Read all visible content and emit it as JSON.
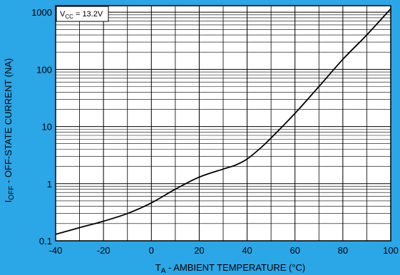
{
  "chart_data": {
    "type": "line",
    "xlabel_main": "T",
    "xlabel_sub": "A",
    "xlabel_rest": " - AMBIENT TEMPERATURE (°C)",
    "ylabel_main": "I",
    "ylabel_sub": "OFF",
    "ylabel_rest": " - OFF-STATE CURRENT (NA)",
    "xlim": [
      -40,
      100
    ],
    "ylim": [
      0.1,
      1300
    ],
    "y_scale": "log",
    "grid": true,
    "x_ticks": [
      "-40",
      "-20",
      "0",
      "20",
      "40",
      "60",
      "80",
      "100"
    ],
    "x_tick_values": [
      -40,
      -20,
      0,
      20,
      40,
      60,
      80,
      100
    ],
    "y_ticks": [
      "0.1",
      "1",
      "10",
      "100",
      "1000"
    ],
    "y_tick_values": [
      0.1,
      1,
      10,
      100,
      1000
    ],
    "annotation": {
      "prefix": "V",
      "sub": "CC",
      "rest": " = 13.2V"
    },
    "series": [
      {
        "x": [
          -40,
          -30,
          -20,
          -10,
          0,
          10,
          20,
          30,
          35,
          40,
          45,
          50,
          60,
          70,
          80,
          90,
          100
        ],
        "y": [
          0.13,
          0.17,
          0.22,
          0.3,
          0.46,
          0.8,
          1.3,
          1.8,
          2.1,
          2.7,
          4.0,
          6.3,
          17,
          50,
          150,
          400,
          1150
        ]
      }
    ],
    "colors": {
      "background": "#2ba6e6",
      "plot_area": "#ffffff",
      "line": "#000000"
    }
  }
}
